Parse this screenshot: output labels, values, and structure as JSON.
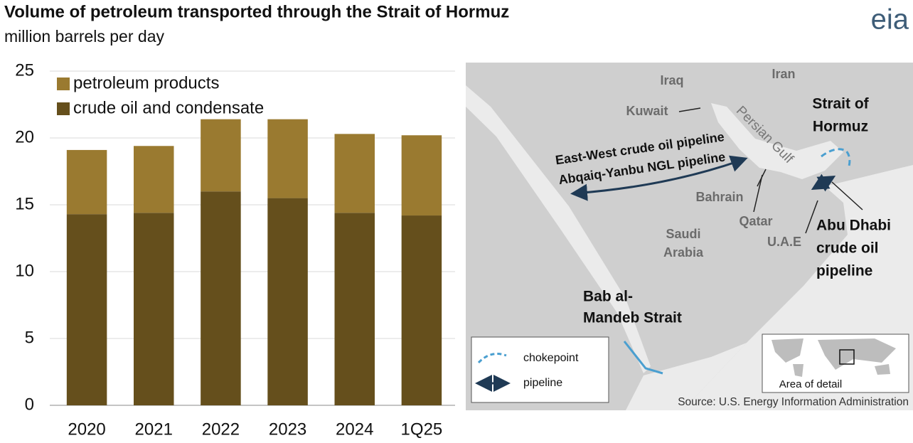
{
  "chart_data": {
    "type": "stacked_bar",
    "title": "Volume of petroleum transported through the Strait of Hormuz",
    "subtitle": "million barrels per day",
    "categories": [
      "2020",
      "2021",
      "2022",
      "2023",
      "2024",
      "1Q25"
    ],
    "series": [
      {
        "name": "crude oil and condensate",
        "color": "#654f1c",
        "values": [
          14.3,
          14.4,
          16.0,
          15.5,
          14.4,
          14.2
        ]
      },
      {
        "name": "petroleum products",
        "color": "#9a7a30",
        "values": [
          4.8,
          5.0,
          5.4,
          5.9,
          5.9,
          6.0
        ]
      }
    ],
    "ylim": [
      0,
      25
    ],
    "yticks": [
      0,
      5,
      10,
      15,
      20,
      25
    ],
    "grid": true,
    "legend": "top-left"
  },
  "logo": "eia",
  "map": {
    "iraq": "Iraq",
    "iran": "Iran",
    "kuwait": "Kuwait",
    "persian_gulf": "Persian Gulf",
    "strait_of_hormuz": [
      "Strait of",
      "Hormuz"
    ],
    "east_west": "East-West crude oil pipeline",
    "abqaiq": "Abqaiq-Yanbu NGL pipeline",
    "bahrain": "Bahrain",
    "qatar": "Qatar",
    "saudi_arabia": [
      "Saudi",
      "Arabia"
    ],
    "uae": "U.A.E",
    "abu_dhabi": [
      "Abu Dhabi",
      "crude oil",
      "pipeline"
    ],
    "bab_al_mandeb": [
      "Bab al-",
      "Mandeb Strait"
    ],
    "legend_chokepoint": "chokepoint",
    "legend_pipeline": "pipeline",
    "area_of_detail": "Area of detail"
  },
  "source": "Source: U.S. Energy Information Administration"
}
